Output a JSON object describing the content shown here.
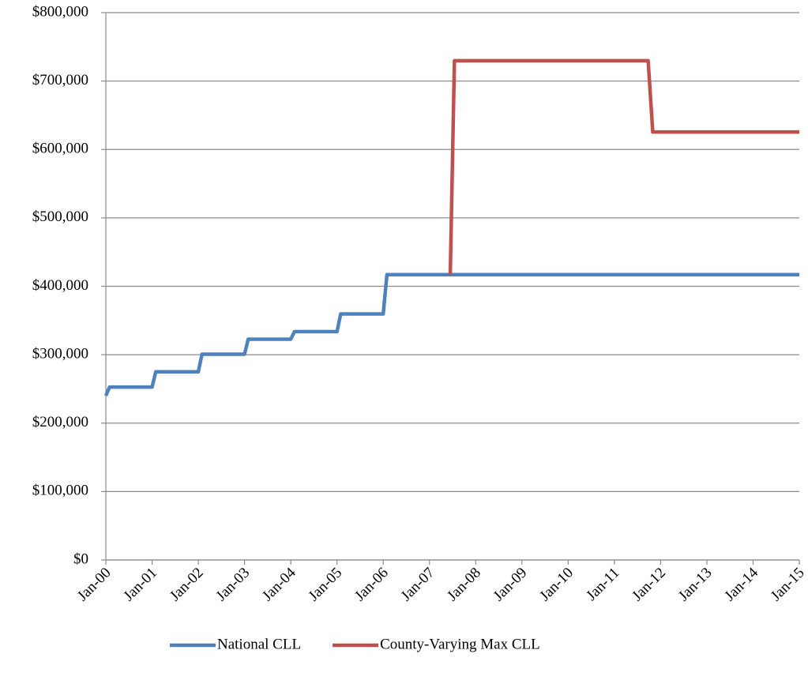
{
  "chart_data": {
    "type": "line",
    "xlim": [
      0,
      15
    ],
    "xticks": [
      {
        "value": 0,
        "label": "Jan-00"
      },
      {
        "value": 1,
        "label": "Jan-01"
      },
      {
        "value": 2,
        "label": "Jan-02"
      },
      {
        "value": 3,
        "label": "Jan-03"
      },
      {
        "value": 4,
        "label": "Jan-04"
      },
      {
        "value": 5,
        "label": "Jan-05"
      },
      {
        "value": 6,
        "label": "Jan-06"
      },
      {
        "value": 7,
        "label": "Jan-07"
      },
      {
        "value": 8,
        "label": "Jan-08"
      },
      {
        "value": 9,
        "label": "Jan-09"
      },
      {
        "value": 10,
        "label": "Jan-10"
      },
      {
        "value": 11,
        "label": "Jan-11"
      },
      {
        "value": 12,
        "label": "Jan-12"
      },
      {
        "value": 13,
        "label": "Jan-13"
      },
      {
        "value": 14,
        "label": "Jan-14"
      },
      {
        "value": 15,
        "label": "Jan-15"
      }
    ],
    "ylim": [
      0,
      800000
    ],
    "yticks": [
      {
        "value": 0,
        "label": "$0"
      },
      {
        "value": 100000,
        "label": "$100,000"
      },
      {
        "value": 200000,
        "label": "$200,000"
      },
      {
        "value": 300000,
        "label": "$300,000"
      },
      {
        "value": 400000,
        "label": "$400,000"
      },
      {
        "value": 500000,
        "label": "$500,000"
      },
      {
        "value": 600000,
        "label": "$600,000"
      },
      {
        "value": 700000,
        "label": "$700,000"
      },
      {
        "value": 800000,
        "label": "$800,000"
      }
    ],
    "grid": true,
    "legend": "bottom",
    "series": [
      {
        "name": "National CLL",
        "color": "#4f81bd",
        "x": [
          0,
          0.08,
          1,
          1.08,
          2,
          2.08,
          3,
          3.08,
          4,
          4.08,
          5,
          5.08,
          6,
          6.08,
          15
        ],
        "values": [
          240000,
          252700,
          252700,
          275000,
          275000,
          300700,
          300700,
          322700,
          322700,
          333700,
          333700,
          359650,
          359650,
          417000,
          417000
        ]
      },
      {
        "name": "County-Varying Max CLL",
        "color": "#c0504d",
        "x": [
          7.45,
          7.54,
          11.73,
          11.83,
          15
        ],
        "values": [
          417000,
          729750,
          729750,
          625500,
          625500
        ]
      }
    ]
  }
}
